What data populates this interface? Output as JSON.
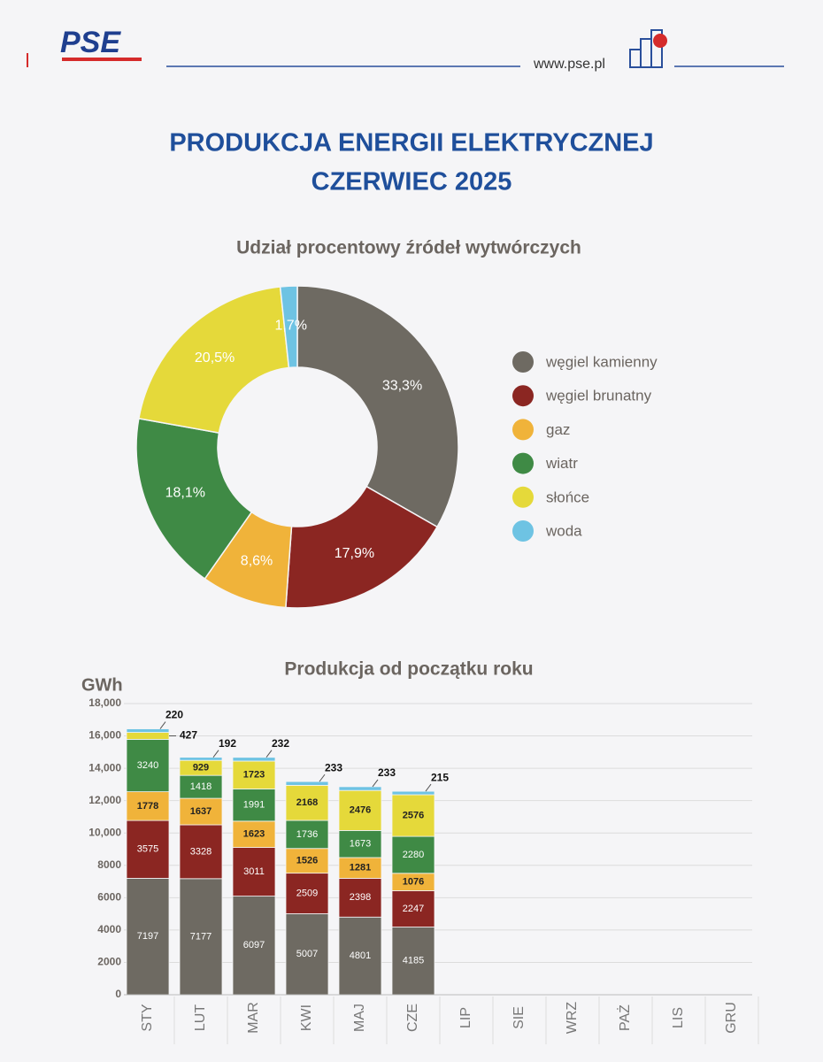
{
  "header": {
    "logo": "PSE",
    "url": "www.pse.pl"
  },
  "title": [
    "PRODUKCJA ENERGII ELEKTRYCZNEJ",
    "CZERWIEC 2025"
  ],
  "chart_data": [
    {
      "type": "pie",
      "title": "Udział procentowy źródeł wytwórczych",
      "categories": [
        "węgiel kamienny",
        "węgiel brunatny",
        "gaz",
        "wiatr",
        "słońce",
        "woda"
      ],
      "values": [
        33.3,
        17.9,
        8.6,
        18.1,
        20.5,
        1.7
      ],
      "value_labels": [
        "33,3%",
        "17,9%",
        "8,6%",
        "18,1%",
        "20,5%",
        "1,7%"
      ],
      "colors": [
        "#6e6a62",
        "#8b2622",
        "#f0b33a",
        "#3f8a45",
        "#e5d93a",
        "#6ec3e3"
      ],
      "legend": "right"
    },
    {
      "type": "bar",
      "stacked": true,
      "title": "Produkcja od początku roku",
      "ylabel": "GWh",
      "categories": [
        "STY",
        "LUT",
        "MAR",
        "KWI",
        "MAJ",
        "CZE",
        "LIP",
        "SIE",
        "WRZ",
        "PAŻ",
        "LIS",
        "GRU"
      ],
      "series": [
        {
          "color": "#6e6a62",
          "values": [
            7197,
            7177,
            6097,
            5007,
            4801,
            4185,
            null,
            null,
            null,
            null,
            null,
            null
          ]
        },
        {
          "color": "#8b2622",
          "values": [
            3575,
            3328,
            3011,
            2509,
            2398,
            2247,
            null,
            null,
            null,
            null,
            null,
            null
          ]
        },
        {
          "color": "#f0b33a",
          "values": [
            1778,
            1637,
            1623,
            1526,
            1281,
            1076,
            null,
            null,
            null,
            null,
            null,
            null
          ]
        },
        {
          "color": "#3f8a45",
          "values": [
            3240,
            1418,
            1991,
            1736,
            1673,
            2280,
            null,
            null,
            null,
            null,
            null,
            null
          ]
        },
        {
          "color": "#e5d93a",
          "values": [
            427,
            929,
            1723,
            2168,
            2476,
            2576,
            null,
            null,
            null,
            null,
            null,
            null
          ]
        },
        {
          "color": "#6ec3e3",
          "values": [
            220,
            192,
            232,
            233,
            233,
            215,
            null,
            null,
            null,
            null,
            null,
            null
          ]
        }
      ],
      "ylim": [
        0,
        18000
      ],
      "yticks": [
        0,
        2000,
        4000,
        6000,
        8000,
        {
          "value": 10000,
          "label": "10,000"
        },
        {
          "value": 12000,
          "label": "12,000"
        },
        {
          "value": 14000,
          "label": "14,000"
        },
        {
          "value": 16000,
          "label": "16,000"
        },
        {
          "value": 18000,
          "label": "18,000"
        }
      ],
      "grid": true
    }
  ]
}
